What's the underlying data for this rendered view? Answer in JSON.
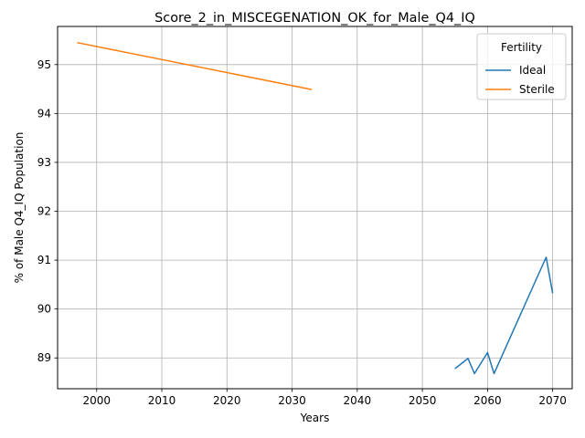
{
  "chart_data": {
    "type": "line",
    "title": "Score_2_in_MISCEGENATION_OK_for_Male_Q4_IQ",
    "xlabel": "Years",
    "ylabel": "% of Male Q4_IQ Population",
    "xlim": [
      1994,
      2073
    ],
    "ylim": [
      88.37,
      95.78
    ],
    "xticks": [
      2000,
      2010,
      2020,
      2030,
      2040,
      2050,
      2060,
      2070
    ],
    "yticks": [
      89,
      90,
      91,
      92,
      93,
      94,
      95
    ],
    "grid": true,
    "legend": {
      "title": "Fertility",
      "placement": "top-right",
      "entries": [
        "Ideal",
        "Sterile"
      ]
    },
    "series": [
      {
        "name": "Ideal",
        "color": "#1f77b4",
        "x": [
          2055,
          2057,
          2058,
          2060,
          2061,
          2069,
          2070
        ],
        "y": [
          88.78,
          88.99,
          88.68,
          89.11,
          88.68,
          91.06,
          90.32
        ]
      },
      {
        "name": "Sterile",
        "color": "#ff7f0e",
        "x": [
          1997,
          2033
        ],
        "y": [
          95.45,
          94.49
        ]
      }
    ]
  }
}
